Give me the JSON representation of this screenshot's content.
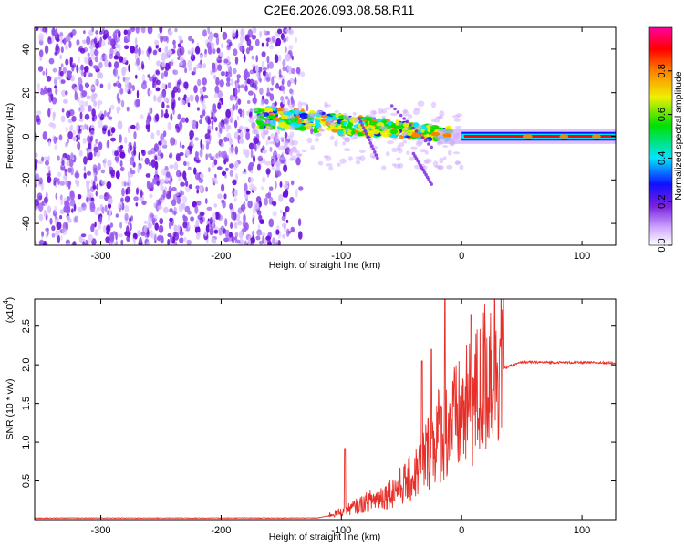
{
  "title": "C2E6.2026.093.08.58.R11",
  "chart_data": [
    {
      "type": "heatmap",
      "name": "spectrogram",
      "xlabel": "Height of straight line (km)",
      "ylabel": "Frequency (Hz)",
      "xlim": [
        -355,
        128
      ],
      "ylim": [
        -50,
        50
      ],
      "xticks": [
        -300,
        -200,
        -100,
        0,
        100
      ],
      "yticks": [
        -40,
        -20,
        0,
        20,
        40
      ],
      "colorbar": {
        "label": "Normalized spectral amplitude",
        "range": [
          0,
          1
        ],
        "ticks": [
          0.0,
          0.2,
          0.4,
          0.6,
          0.8
        ],
        "colormap": [
          "#ffffff",
          "#cfa8ff",
          "#7a1fe0",
          "#1010ff",
          "#00e5ff",
          "#00e000",
          "#f0f000",
          "#ff8000",
          "#ff0000",
          "#ff00a0"
        ]
      },
      "regions": [
        {
          "desc": "broadband noise",
          "x_range": [
            -355,
            -140
          ],
          "f_range": [
            -50,
            50
          ],
          "amplitude": 0.1
        },
        {
          "desc": "transition trail",
          "x_range": [
            -170,
            -20
          ],
          "f_range": [
            -12,
            12
          ],
          "amplitude": 0.35
        },
        {
          "desc": "narrowband tone",
          "x_range": [
            0,
            128
          ],
          "f_center": 0,
          "amplitude": 0.9
        }
      ]
    },
    {
      "type": "line",
      "name": "snr",
      "xlabel": "Height of straight line (km)",
      "ylabel": "SNR (10 * v/v)",
      "y_multiplier": "(x10",
      "y_multiplier_exp": "4",
      "y_multiplier_close": ")",
      "xlim": [
        -355,
        128
      ],
      "ylim": [
        0,
        2.85
      ],
      "xticks": [
        -300,
        -200,
        -100,
        0,
        100
      ],
      "yticks": [
        0.5,
        1.0,
        1.5,
        2.0,
        2.5
      ],
      "color": "#e8302a",
      "profile": [
        {
          "x": -355,
          "y": 0.02
        },
        {
          "x": -120,
          "y": 0.02
        },
        {
          "x": -100,
          "y": 0.08
        },
        {
          "x": -80,
          "y": 0.18
        },
        {
          "x": -60,
          "y": 0.28
        },
        {
          "x": -40,
          "y": 0.45
        },
        {
          "x": -20,
          "y": 0.9
        },
        {
          "x": 0,
          "y": 1.1
        },
        {
          "x": 15,
          "y": 1.35
        },
        {
          "x": 25,
          "y": 1.7
        },
        {
          "x": 35,
          "y": 1.95
        },
        {
          "x": 50,
          "y": 2.03
        },
        {
          "x": 128,
          "y": 2.02
        }
      ],
      "peaks": [
        {
          "x": -14,
          "y": 2.85
        },
        {
          "x": 8,
          "y": 2.65
        },
        {
          "x": -33,
          "y": 2.05
        },
        {
          "x": -25,
          "y": 2.2
        },
        {
          "x": -97,
          "y": 0.92
        }
      ]
    }
  ]
}
